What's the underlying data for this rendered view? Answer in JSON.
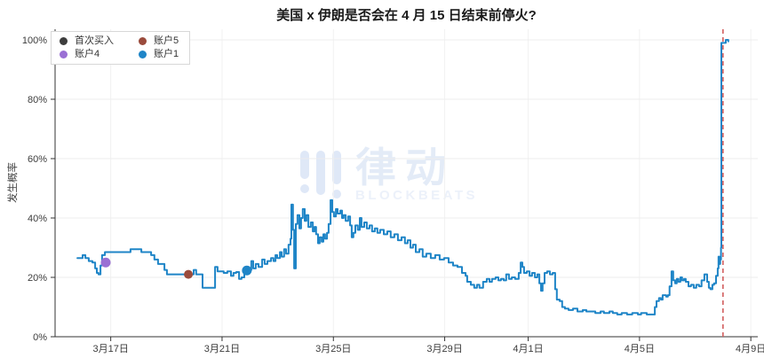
{
  "watermark": {
    "cn": "律动",
    "en": "BLOCKBEATS"
  },
  "colors": {
    "series_blue": "#1f85c7",
    "marker_dark": "#3d3d3d",
    "marker_purple": "#9a6fd4",
    "marker_brown": "#9a4b3c",
    "deadline_red": "#d25f5f",
    "grid": "#ededed",
    "grid_vertical": "#f1f1f1",
    "axis": "#333333",
    "tick_text": "#3c3c3c"
  },
  "chart_data": {
    "type": "line",
    "title": "美国 x 伊朗是否会在 4 月 15 日结束前停火?",
    "xlabel": "",
    "ylabel": "发生概率",
    "ylim": [
      0,
      100
    ],
    "grid": true,
    "legend_position": "top-left",
    "x_unit": "days-since-3月15日",
    "xlim": [
      0,
      25.25
    ],
    "x_ticks": [
      {
        "t": 2,
        "label": "3月17日"
      },
      {
        "t": 6,
        "label": "3月21日"
      },
      {
        "t": 10,
        "label": "3月25日"
      },
      {
        "t": 14,
        "label": "3月29日"
      },
      {
        "t": 17,
        "label": "4月1日"
      },
      {
        "t": 21,
        "label": "4月5日"
      },
      {
        "t": 25,
        "label": "4月9日"
      }
    ],
    "y_ticks": [
      {
        "v": 0,
        "label": "0%"
      },
      {
        "v": 20,
        "label": "20%"
      },
      {
        "v": 40,
        "label": "40%"
      },
      {
        "v": 60,
        "label": "60%"
      },
      {
        "v": 80,
        "label": "80%"
      },
      {
        "v": 100,
        "label": "100%"
      }
    ],
    "legend": [
      {
        "id": "first-buy",
        "label": "首次买入",
        "color": "#3d3d3d"
      },
      {
        "id": "account5",
        "label": "账户5",
        "color": "#9a4b3c"
      },
      {
        "id": "account4",
        "label": "账户4",
        "color": "#9a6fd4"
      },
      {
        "id": "account1",
        "label": "账户1",
        "color": "#1f85c7"
      }
    ],
    "series": [
      {
        "name": "账户1",
        "color": "#1f85c7",
        "step": true,
        "points": [
          [
            0.8,
            26.5
          ],
          [
            0.99,
            27.5
          ],
          [
            1.09,
            26.5
          ],
          [
            1.21,
            25.5
          ],
          [
            1.34,
            25.0
          ],
          [
            1.44,
            23.0
          ],
          [
            1.5,
            21.5
          ],
          [
            1.56,
            21.0
          ],
          [
            1.63,
            24.0
          ],
          [
            1.69,
            27.5
          ],
          [
            1.79,
            28.5
          ],
          [
            2.68,
            28.5
          ],
          [
            2.71,
            29.5
          ],
          [
            3.06,
            29.5
          ],
          [
            3.1,
            28.5
          ],
          [
            3.38,
            28.5
          ],
          [
            3.45,
            27.5
          ],
          [
            3.57,
            26.0
          ],
          [
            3.7,
            24.5
          ],
          [
            3.86,
            24.5
          ],
          [
            3.93,
            22.5
          ],
          [
            4.02,
            21.0
          ],
          [
            4.56,
            21.0
          ],
          [
            4.72,
            21.5
          ],
          [
            4.85,
            21.0
          ],
          [
            4.98,
            22.5
          ],
          [
            5.07,
            21.0
          ],
          [
            5.3,
            16.5
          ],
          [
            5.68,
            16.5
          ],
          [
            5.75,
            23.5
          ],
          [
            5.84,
            22.0
          ],
          [
            6.06,
            21.5
          ],
          [
            6.19,
            22.0
          ],
          [
            6.32,
            20.5
          ],
          [
            6.41,
            21.5
          ],
          [
            6.51,
            21.8
          ],
          [
            6.61,
            19.5
          ],
          [
            6.7,
            20.0
          ],
          [
            6.8,
            22.3
          ],
          [
            6.96,
            22.5
          ],
          [
            7.05,
            25.5
          ],
          [
            7.12,
            23.0
          ],
          [
            7.21,
            24.5
          ],
          [
            7.31,
            23.5
          ],
          [
            7.44,
            26.0
          ],
          [
            7.53,
            24.5
          ],
          [
            7.63,
            25.5
          ],
          [
            7.76,
            26.5
          ],
          [
            7.85,
            25.5
          ],
          [
            7.92,
            27.5
          ],
          [
            7.98,
            26.5
          ],
          [
            8.08,
            28.5
          ],
          [
            8.14,
            27.0
          ],
          [
            8.23,
            29.5
          ],
          [
            8.3,
            28.0
          ],
          [
            8.39,
            31.0
          ],
          [
            8.46,
            33.0
          ],
          [
            8.49,
            44.5
          ],
          [
            8.55,
            36.0
          ],
          [
            8.59,
            23.0
          ],
          [
            8.65,
            38.0
          ],
          [
            8.71,
            41.0
          ],
          [
            8.78,
            36.5
          ],
          [
            8.84,
            40.0
          ],
          [
            8.9,
            43.0
          ],
          [
            8.97,
            39.0
          ],
          [
            9.03,
            41.0
          ],
          [
            9.1,
            37.0
          ],
          [
            9.19,
            38.5
          ],
          [
            9.26,
            35.5
          ],
          [
            9.32,
            37.0
          ],
          [
            9.38,
            34.5
          ],
          [
            9.45,
            31.5
          ],
          [
            9.51,
            33.5
          ],
          [
            9.58,
            32.0
          ],
          [
            9.64,
            34.5
          ],
          [
            9.7,
            33.0
          ],
          [
            9.77,
            35.0
          ],
          [
            9.83,
            38.0
          ],
          [
            9.9,
            46.0
          ],
          [
            9.96,
            42.0
          ],
          [
            10.02,
            40.5
          ],
          [
            10.09,
            43.0
          ],
          [
            10.15,
            41.5
          ],
          [
            10.25,
            42.5
          ],
          [
            10.31,
            40.0
          ],
          [
            10.37,
            41.0
          ],
          [
            10.44,
            39.0
          ],
          [
            10.53,
            40.5
          ],
          [
            10.6,
            37.5
          ],
          [
            10.66,
            33.5
          ],
          [
            10.72,
            35.0
          ],
          [
            10.79,
            37.5
          ],
          [
            10.88,
            36.0
          ],
          [
            10.95,
            40.0
          ],
          [
            11.01,
            37.0
          ],
          [
            11.11,
            38.5
          ],
          [
            11.2,
            36.5
          ],
          [
            11.3,
            37.5
          ],
          [
            11.39,
            35.5
          ],
          [
            11.49,
            36.5
          ],
          [
            11.58,
            35.0
          ],
          [
            11.68,
            36.0
          ],
          [
            11.81,
            34.5
          ],
          [
            11.94,
            35.5
          ],
          [
            12.06,
            33.5
          ],
          [
            12.19,
            34.5
          ],
          [
            12.32,
            32.5
          ],
          [
            12.45,
            33.5
          ],
          [
            12.57,
            31.5
          ],
          [
            12.67,
            32.5
          ],
          [
            12.77,
            30.0
          ],
          [
            12.86,
            31.0
          ],
          [
            12.96,
            28.5
          ],
          [
            13.09,
            29.5
          ],
          [
            13.21,
            27.0
          ],
          [
            13.34,
            28.0
          ],
          [
            13.5,
            26.5
          ],
          [
            13.66,
            27.5
          ],
          [
            13.82,
            26.0
          ],
          [
            13.98,
            26.5
          ],
          [
            14.14,
            25.0
          ],
          [
            14.3,
            24.0
          ],
          [
            14.46,
            23.5
          ],
          [
            14.62,
            21.5
          ],
          [
            14.75,
            20.5
          ],
          [
            14.81,
            18.5
          ],
          [
            14.94,
            17.5
          ],
          [
            15.06,
            16.5
          ],
          [
            15.16,
            17.5
          ],
          [
            15.25,
            16.5
          ],
          [
            15.38,
            18.5
          ],
          [
            15.51,
            19.5
          ],
          [
            15.61,
            18.5
          ],
          [
            15.7,
            19.5
          ],
          [
            15.83,
            20.0
          ],
          [
            15.93,
            19.0
          ],
          [
            16.02,
            19.5
          ],
          [
            16.12,
            19.0
          ],
          [
            16.21,
            21.0
          ],
          [
            16.31,
            19.5
          ],
          [
            16.41,
            20.0
          ],
          [
            16.53,
            19.5
          ],
          [
            16.66,
            21.5
          ],
          [
            16.73,
            25.0
          ],
          [
            16.79,
            23.5
          ],
          [
            16.85,
            21.5
          ],
          [
            16.95,
            22.0
          ],
          [
            17.05,
            20.5
          ],
          [
            17.14,
            21.5
          ],
          [
            17.24,
            20.0
          ],
          [
            17.33,
            21.0
          ],
          [
            17.4,
            18.0
          ],
          [
            17.46,
            15.5
          ],
          [
            17.52,
            18.0
          ],
          [
            17.59,
            21.5
          ],
          [
            17.68,
            22.0
          ],
          [
            17.78,
            21.0
          ],
          [
            17.88,
            21.5
          ],
          [
            17.97,
            16.0
          ],
          [
            18.03,
            12.5
          ],
          [
            18.13,
            12.0
          ],
          [
            18.22,
            10.0
          ],
          [
            18.32,
            9.5
          ],
          [
            18.45,
            9.0
          ],
          [
            18.61,
            9.5
          ],
          [
            18.77,
            8.5
          ],
          [
            18.96,
            9.0
          ],
          [
            19.09,
            8.5
          ],
          [
            19.28,
            8.5
          ],
          [
            19.41,
            8.0
          ],
          [
            19.6,
            8.5
          ],
          [
            19.72,
            8.0
          ],
          [
            19.92,
            8.5
          ],
          [
            20.04,
            8.0
          ],
          [
            20.2,
            7.5
          ],
          [
            20.36,
            8.0
          ],
          [
            20.55,
            7.5
          ],
          [
            20.74,
            8.0
          ],
          [
            20.94,
            7.5
          ],
          [
            21.06,
            8.0
          ],
          [
            21.26,
            7.5
          ],
          [
            21.45,
            7.5
          ],
          [
            21.55,
            10.0
          ],
          [
            21.61,
            12.0
          ],
          [
            21.7,
            13.0
          ],
          [
            21.77,
            12.5
          ],
          [
            21.83,
            14.0
          ],
          [
            21.96,
            13.5
          ],
          [
            22.02,
            14.0
          ],
          [
            22.08,
            17.0
          ],
          [
            22.15,
            22.0
          ],
          [
            22.21,
            19.0
          ],
          [
            22.28,
            18.0
          ],
          [
            22.34,
            19.5
          ],
          [
            22.4,
            18.5
          ],
          [
            22.47,
            20.0
          ],
          [
            22.53,
            19.0
          ],
          [
            22.6,
            19.5
          ],
          [
            22.66,
            18.5
          ],
          [
            22.76,
            17.0
          ],
          [
            22.85,
            17.5
          ],
          [
            22.95,
            16.5
          ],
          [
            23.04,
            17.5
          ],
          [
            23.14,
            17.0
          ],
          [
            23.23,
            19.0
          ],
          [
            23.33,
            21.0
          ],
          [
            23.43,
            18.5
          ],
          [
            23.49,
            16.5
          ],
          [
            23.55,
            16.0
          ],
          [
            23.62,
            17.5
          ],
          [
            23.68,
            18.0
          ],
          [
            23.75,
            20.5
          ],
          [
            23.81,
            23.0
          ],
          [
            23.84,
            27.0
          ],
          [
            23.87,
            24.5
          ],
          [
            23.9,
            26.0
          ],
          [
            23.93,
            30.0
          ],
          [
            23.94,
            99.0
          ],
          [
            24.07,
            99.0
          ],
          [
            24.1,
            100.0
          ],
          [
            24.19,
            99.5
          ]
        ]
      }
    ],
    "markers": [
      {
        "id": "first-buy",
        "label": "首次买入",
        "color": "#3d3d3d",
        "t": 1.82,
        "p": 25.0,
        "r": 5
      },
      {
        "id": "account5",
        "label": "账户5",
        "color": "#9a4b3c",
        "t": 4.79,
        "p": 21.0,
        "r": 5
      },
      {
        "id": "account4",
        "label": "账户4",
        "color": "#9a6fd4",
        "t": 1.82,
        "p": 25.0,
        "r": 5.5
      },
      {
        "id": "account1",
        "label": "账户1",
        "color": "#1f85c7",
        "t": 6.89,
        "p": 22.3,
        "r": 5.5
      }
    ],
    "event_line": {
      "t": 24.0,
      "color": "#d25f5f",
      "style": "dashed"
    }
  }
}
